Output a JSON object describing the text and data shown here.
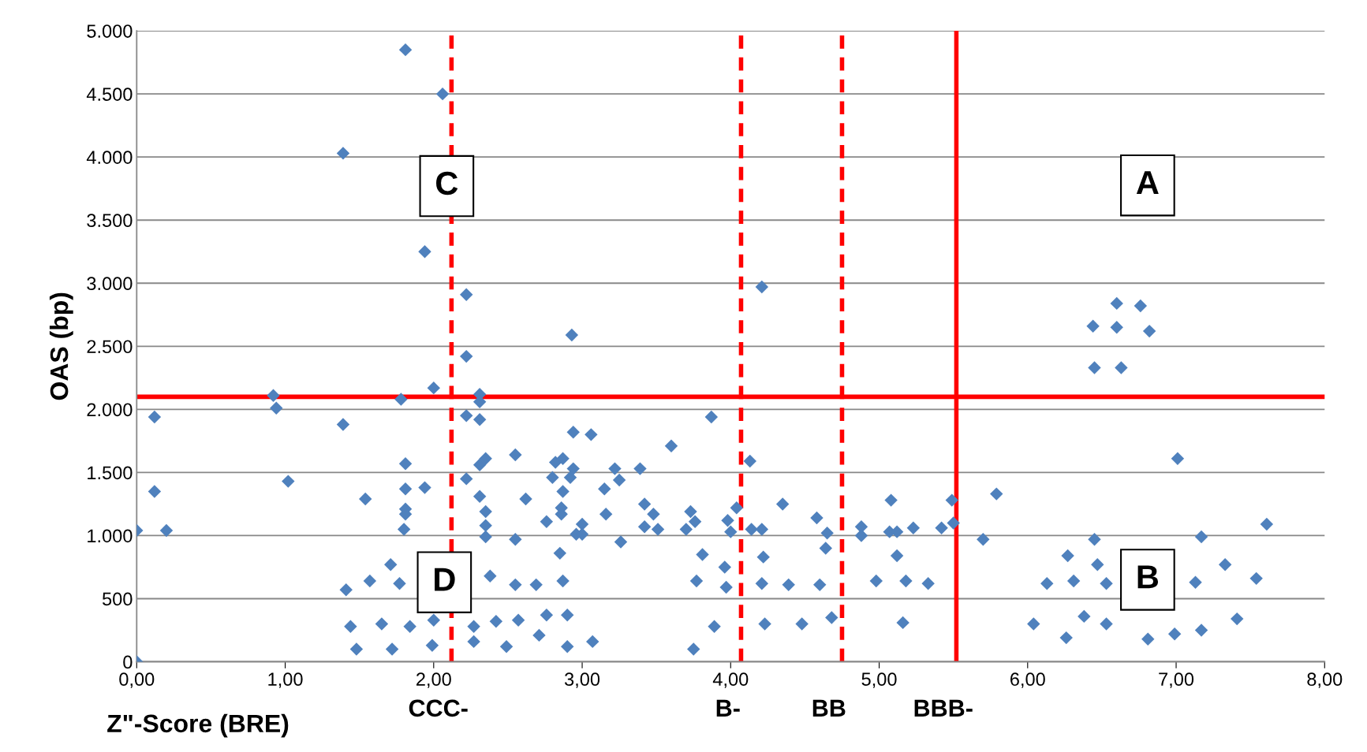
{
  "chart_data": {
    "type": "scatter",
    "xlabel": "Z\"-Score (BRE)",
    "ylabel": "OAS (bp)",
    "x": [
      0.0,
      0.0,
      0.12,
      0.12,
      0.2,
      0.92,
      0.94,
      1.02,
      1.39,
      1.39,
      1.41,
      1.44,
      1.48,
      1.54,
      1.57,
      1.65,
      1.71,
      1.72,
      1.77,
      1.78,
      1.81,
      1.81,
      1.81,
      1.81,
      1.81,
      1.8,
      1.84,
      1.94,
      1.94,
      1.99,
      2.0,
      2.0,
      2.06,
      2.22,
      2.22,
      2.22,
      2.22,
      2.27,
      2.27,
      2.31,
      2.31,
      2.31,
      2.31,
      2.31,
      2.35,
      2.35,
      2.35,
      2.35,
      2.38,
      2.42,
      2.49,
      2.55,
      2.55,
      2.55,
      2.57,
      2.62,
      2.69,
      2.71,
      2.76,
      2.76,
      2.8,
      2.82,
      2.85,
      2.87,
      2.87,
      2.86,
      2.86,
      2.87,
      2.9,
      2.9,
      2.92,
      2.93,
      2.94,
      2.94,
      2.96,
      3.0,
      3.0,
      3.07,
      3.06,
      3.15,
      3.16,
      3.22,
      3.25,
      3.26,
      3.39,
      3.42,
      3.42,
      3.48,
      3.51,
      3.6,
      3.7,
      3.73,
      3.76,
      3.75,
      3.77,
      3.81,
      3.87,
      3.89,
      3.96,
      3.97,
      3.98,
      4.0,
      4.04,
      4.13,
      4.14,
      4.21,
      4.21,
      4.22,
      4.21,
      4.23,
      4.35,
      4.39,
      4.48,
      4.58,
      4.6,
      4.64,
      4.65,
      4.68,
      4.88,
      4.88,
      4.98,
      5.07,
      5.08,
      5.12,
      5.12,
      5.16,
      5.18,
      5.23,
      5.33,
      5.42,
      5.49,
      5.5,
      5.7,
      5.79,
      6.04,
      6.13,
      6.26,
      6.27,
      6.31,
      6.38,
      6.44,
      6.45,
      6.45,
      6.47,
      6.53,
      6.53,
      6.6,
      6.6,
      6.63,
      6.76,
      6.81,
      6.82,
      6.99,
      7.01,
      7.13,
      7.17,
      7.17,
      7.33,
      7.41,
      7.54,
      7.61
    ],
    "series": [
      {
        "color": "#4f81bd",
        "values": [
          1040,
          0,
          1940,
          1350,
          1040,
          2110,
          2010,
          1430,
          4030,
          1880,
          570,
          280,
          100,
          1290,
          640,
          300,
          770,
          100,
          620,
          2080,
          4850,
          1570,
          1370,
          1210,
          1170,
          1050,
          280,
          1380,
          3250,
          130,
          2170,
          330,
          4500,
          2910,
          2420,
          1950,
          1450,
          280,
          160,
          2120,
          2060,
          1920,
          1560,
          1310,
          1610,
          1190,
          1080,
          990,
          680,
          320,
          120,
          1640,
          970,
          610,
          330,
          1290,
          610,
          210,
          370,
          1110,
          1460,
          1580,
          860,
          1610,
          1350,
          1220,
          1170,
          640,
          370,
          120,
          1460,
          2590,
          1820,
          1530,
          1010,
          1090,
          1010,
          160,
          1800,
          1370,
          1170,
          1530,
          1440,
          950,
          1530,
          1250,
          1070,
          1170,
          1050,
          1710,
          1050,
          1190,
          1110,
          100,
          640,
          850,
          1940,
          280,
          750,
          590,
          1120,
          1030,
          1220,
          1590,
          1050,
          1050,
          2970,
          830,
          620,
          300,
          1250,
          610,
          300,
          1140,
          610,
          900,
          1020,
          350,
          1070,
          1000,
          640,
          1030,
          1280,
          840,
          1030,
          310,
          640,
          1060,
          620,
          1060,
          1280,
          1100,
          970,
          1330,
          300,
          620,
          190,
          840,
          640,
          360,
          2660,
          2330,
          970,
          770,
          620,
          300,
          2840,
          2650,
          2330,
          2820,
          180,
          2620,
          220,
          1610,
          630,
          250,
          990,
          770,
          340,
          660,
          1090
        ]
      }
    ],
    "xlim": [
      0,
      8
    ],
    "ylim": [
      0,
      5000
    ],
    "xticks": [
      {
        "value": 0,
        "label": "0,00"
      },
      {
        "value": 1,
        "label": "1,00"
      },
      {
        "value": 2,
        "label": "2,00"
      },
      {
        "value": 3,
        "label": "3,00"
      },
      {
        "value": 4,
        "label": "4,00"
      },
      {
        "value": 5,
        "label": "5,00"
      },
      {
        "value": 6,
        "label": "6,00"
      },
      {
        "value": 7,
        "label": "7,00"
      },
      {
        "value": 8,
        "label": "8,00"
      }
    ],
    "yticks": [
      0,
      500,
      {
        "value": 1000,
        "label": "1.000"
      },
      {
        "value": 1500,
        "label": "1.500"
      },
      {
        "value": 2000,
        "label": "2.000"
      },
      {
        "value": 2500,
        "label": "2.500"
      },
      {
        "value": 3000,
        "label": "3.000"
      },
      {
        "value": 3500,
        "label": "3.500"
      },
      {
        "value": 4000,
        "label": "4.000"
      },
      {
        "value": 4500,
        "label": "4.500"
      },
      {
        "value": 5000,
        "label": "5.000"
      }
    ],
    "grid": "y",
    "marker": "diamond",
    "ref_lines": [
      {
        "axis": "y",
        "value": 2100,
        "color": "#ff0000",
        "line_style": "solid"
      },
      {
        "axis": "x",
        "value": 2.12,
        "label": "CCC-",
        "color": "#ff0000",
        "line_style": "dashed"
      },
      {
        "axis": "x",
        "value": 4.07,
        "label": "B-",
        "color": "#ff0000",
        "line_style": "dashed"
      },
      {
        "axis": "x",
        "value": 4.75,
        "label": "BB",
        "color": "#ff0000",
        "line_style": "dashed"
      },
      {
        "axis": "x",
        "value": 5.52,
        "label": "BBB-",
        "color": "#ff0000",
        "line_style": "solid"
      }
    ],
    "annotations": [
      "C",
      "A",
      "D",
      "B"
    ]
  }
}
